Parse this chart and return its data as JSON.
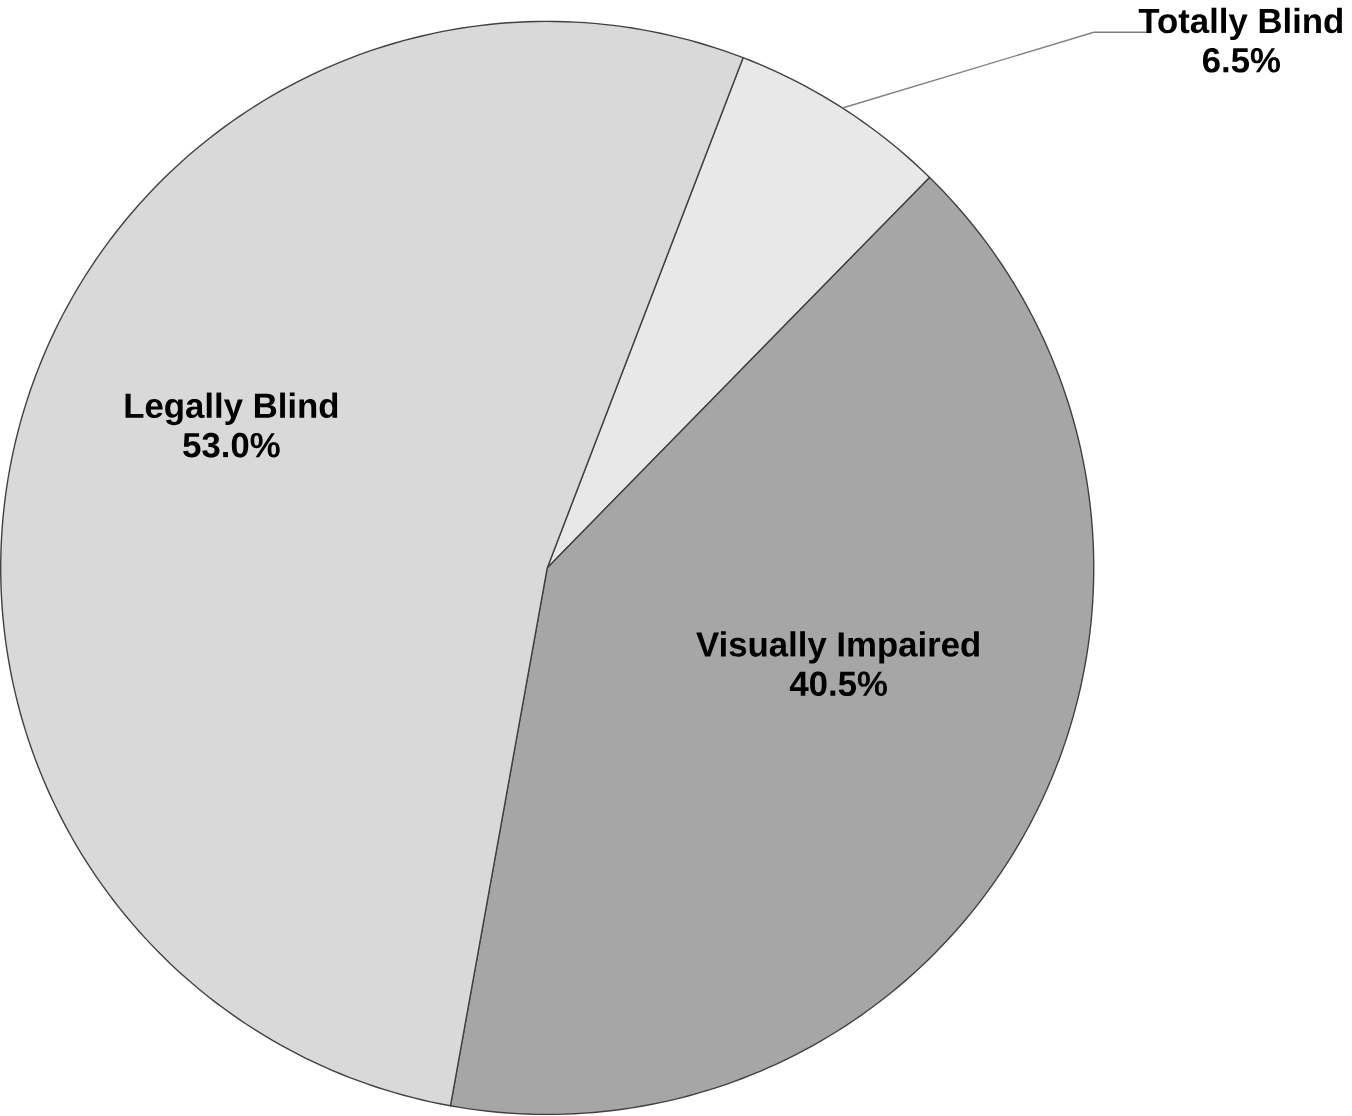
{
  "chart_data": {
    "type": "pie",
    "categories": [
      "Totally Blind",
      "Visually Impaired",
      "Legally Blind"
    ],
    "values": [
      6.5,
      40.5,
      53.0
    ],
    "colors": [
      "#e8e8e8",
      "#a6a6a6",
      "#d9d9d9"
    ],
    "value_labels": [
      "6.5%",
      "40.5%",
      "53.0%"
    ]
  }
}
